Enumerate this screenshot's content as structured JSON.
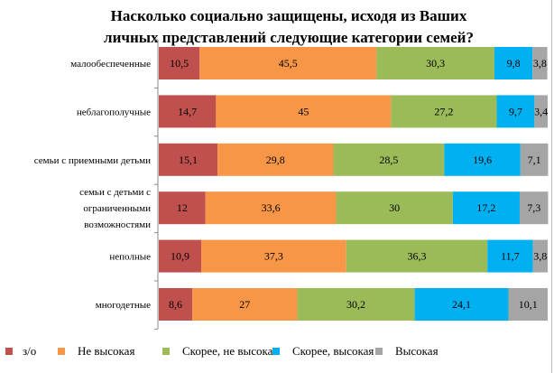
{
  "chart_data": {
    "type": "bar",
    "orientation": "horizontal",
    "stacked": true,
    "title": "Насколько социально защищены, исходя из Ваших личных представлений следующие категории семей?",
    "title_lines": [
      "Насколько социально защищены, исходя из Ваших",
      "личных представлений следующие категории семей?"
    ],
    "categories": [
      [
        "малообеспеченные"
      ],
      [
        "неблагополучные"
      ],
      [
        "семьи с приемными детьми"
      ],
      [
        "семьи с детьми с",
        "ограниченными",
        "возможностями"
      ],
      [
        "неполные"
      ],
      [
        "многодетные"
      ]
    ],
    "series": [
      {
        "name": "з/о",
        "color": "#c0504d",
        "values": [
          10.5,
          14.7,
          15.1,
          12,
          10.9,
          8.6
        ],
        "labels": [
          "10,5",
          "14,7",
          "15,1",
          "12",
          "10,9",
          "8,6"
        ]
      },
      {
        "name": "Не высокая",
        "color": "#f79646",
        "values": [
          45.5,
          45,
          29.8,
          33.6,
          37.3,
          27
        ],
        "labels": [
          "45,5",
          "45",
          "29,8",
          "33,6",
          "37,3",
          "27"
        ]
      },
      {
        "name": "Скорее, не высокая",
        "color": "#9bbb59",
        "values": [
          30.3,
          27.2,
          28.5,
          30,
          36.3,
          30.2
        ],
        "labels": [
          "30,3",
          "27,2",
          "28,5",
          "30",
          "36,3",
          "30,2"
        ]
      },
      {
        "name": "Скорее, высокая",
        "color": "#00b0f0",
        "values": [
          9.8,
          9.7,
          19.6,
          17.2,
          11.7,
          24.1
        ],
        "labels": [
          "9,8",
          "9,7",
          "19,6",
          "17,2",
          "11,7",
          "24,1"
        ]
      },
      {
        "name": "Высокая",
        "color": "#a5a5a5",
        "values": [
          3.8,
          3.4,
          7.1,
          7.3,
          3.8,
          10.1
        ],
        "labels": [
          "3,8",
          "3,4",
          "7,1",
          "7,3",
          "3,8",
          "10,1"
        ]
      }
    ],
    "xlim": [
      0,
      100
    ],
    "grid": false,
    "legend": "bottom"
  }
}
